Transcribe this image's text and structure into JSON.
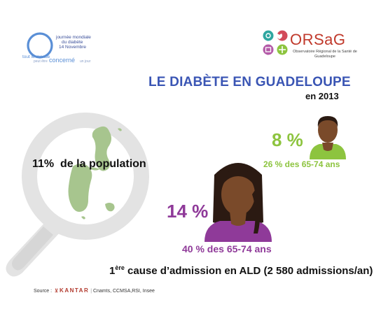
{
  "campaign_logo": {
    "lines": [
      "journée mondiale",
      "du diabète",
      "14 Novembre"
    ],
    "slogan_top": "tout le monde",
    "slogan_mid": "peut être",
    "slogan_word": "concerné",
    "slogan_end": "un jour"
  },
  "orsag_logo": {
    "name": "ORSaG",
    "subtitle": "Observatoire Régional de la Santé de Guadeloupe",
    "color": "#c0392b"
  },
  "title": "LE DIABÈTE EN GUADELOUPE",
  "subtitle": "en 2013",
  "population": {
    "value": "11%",
    "label": "de la population"
  },
  "men": {
    "percent": "8 %",
    "detail": "26 % des 65-74 ans",
    "color": "#8dc43f"
  },
  "women": {
    "percent": "14 %",
    "detail": "40 % des 65-74 ans",
    "color": "#8f3a99"
  },
  "ald": {
    "rank_number": "1",
    "rank_suffix": "ère",
    "text": " cause d’admission en ALD (2 580 admissions/an)"
  },
  "source": {
    "label": "Source :",
    "brand": "KANTAR",
    "separator": "|",
    "others": "Cnamts, CCMSA,RSI, Insee"
  },
  "colors": {
    "title": "#3a55b4",
    "magnifier": "#e3e3e3",
    "island": "#a7c58e",
    "skin": "#7a4a2a",
    "hair": "#2b1a12"
  }
}
